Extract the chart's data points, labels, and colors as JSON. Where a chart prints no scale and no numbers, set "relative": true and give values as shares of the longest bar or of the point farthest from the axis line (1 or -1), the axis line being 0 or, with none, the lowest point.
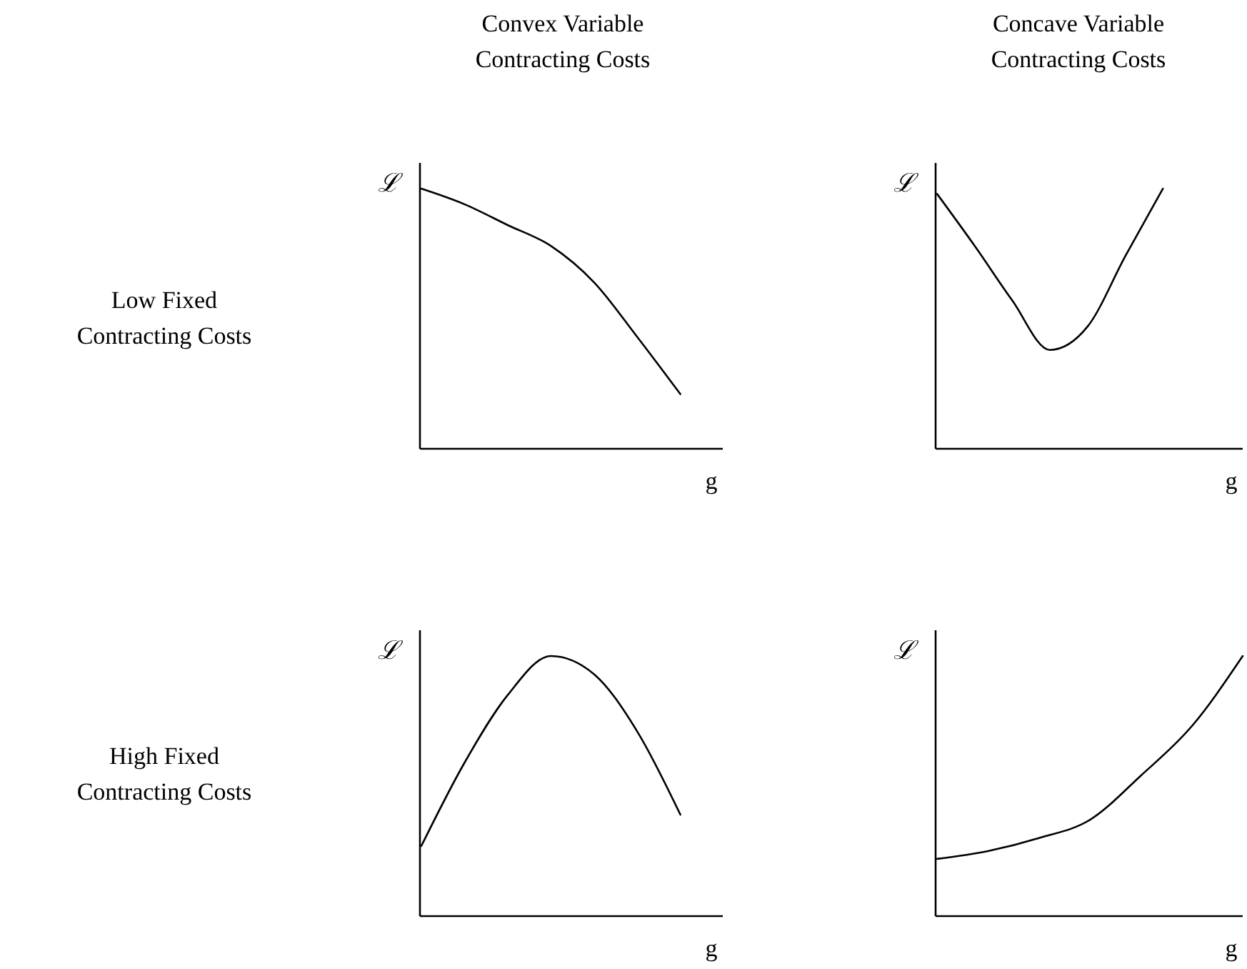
{
  "chart_data": [
    {
      "type": "line",
      "title": "Convex Variable Contracting Costs",
      "annotations": [
        "Low Fixed Contracting Costs"
      ],
      "xlabel": "g",
      "ylabel": "ℒ",
      "relative": true,
      "categories": [
        null,
        null,
        null,
        null,
        null,
        null,
        null
      ],
      "series": [
        {
          "color": "#000000",
          "values": [
            1,
            0.94,
            0.86,
            0.78,
            0.64,
            0.43,
            0.21
          ]
        }
      ]
    },
    {
      "type": "line",
      "title": "Concave Variable Contracting Costs",
      "xlabel": "g",
      "ylabel": "ℒ",
      "relative": true,
      "categories": [
        null,
        null,
        null,
        null,
        null,
        null,
        null
      ],
      "series": [
        {
          "color": "#000000",
          "values": [
            0.98,
            0.78,
            0.57,
            0.38,
            0.47,
            0.74,
            1
          ]
        }
      ]
    },
    {
      "type": "line",
      "annotations": [
        "High Fixed Contracting Costs"
      ],
      "xlabel": "g",
      "ylabel": "ℒ",
      "relative": true,
      "categories": [
        null,
        null,
        null,
        null,
        null,
        null,
        null
      ],
      "series": [
        {
          "color": "#000000",
          "values": [
            0.27,
            0.59,
            0.85,
            1,
            0.93,
            0.71,
            0.39
          ]
        }
      ]
    },
    {
      "type": "line",
      "xlabel": "g",
      "ylabel": "ℒ",
      "relative": true,
      "categories": [
        null,
        null,
        null,
        null,
        null,
        null,
        null
      ],
      "series": [
        {
          "color": "#000000",
          "values": [
            0.22,
            0.25,
            0.3,
            0.37,
            0.54,
            0.73,
            1
          ]
        }
      ]
    }
  ]
}
